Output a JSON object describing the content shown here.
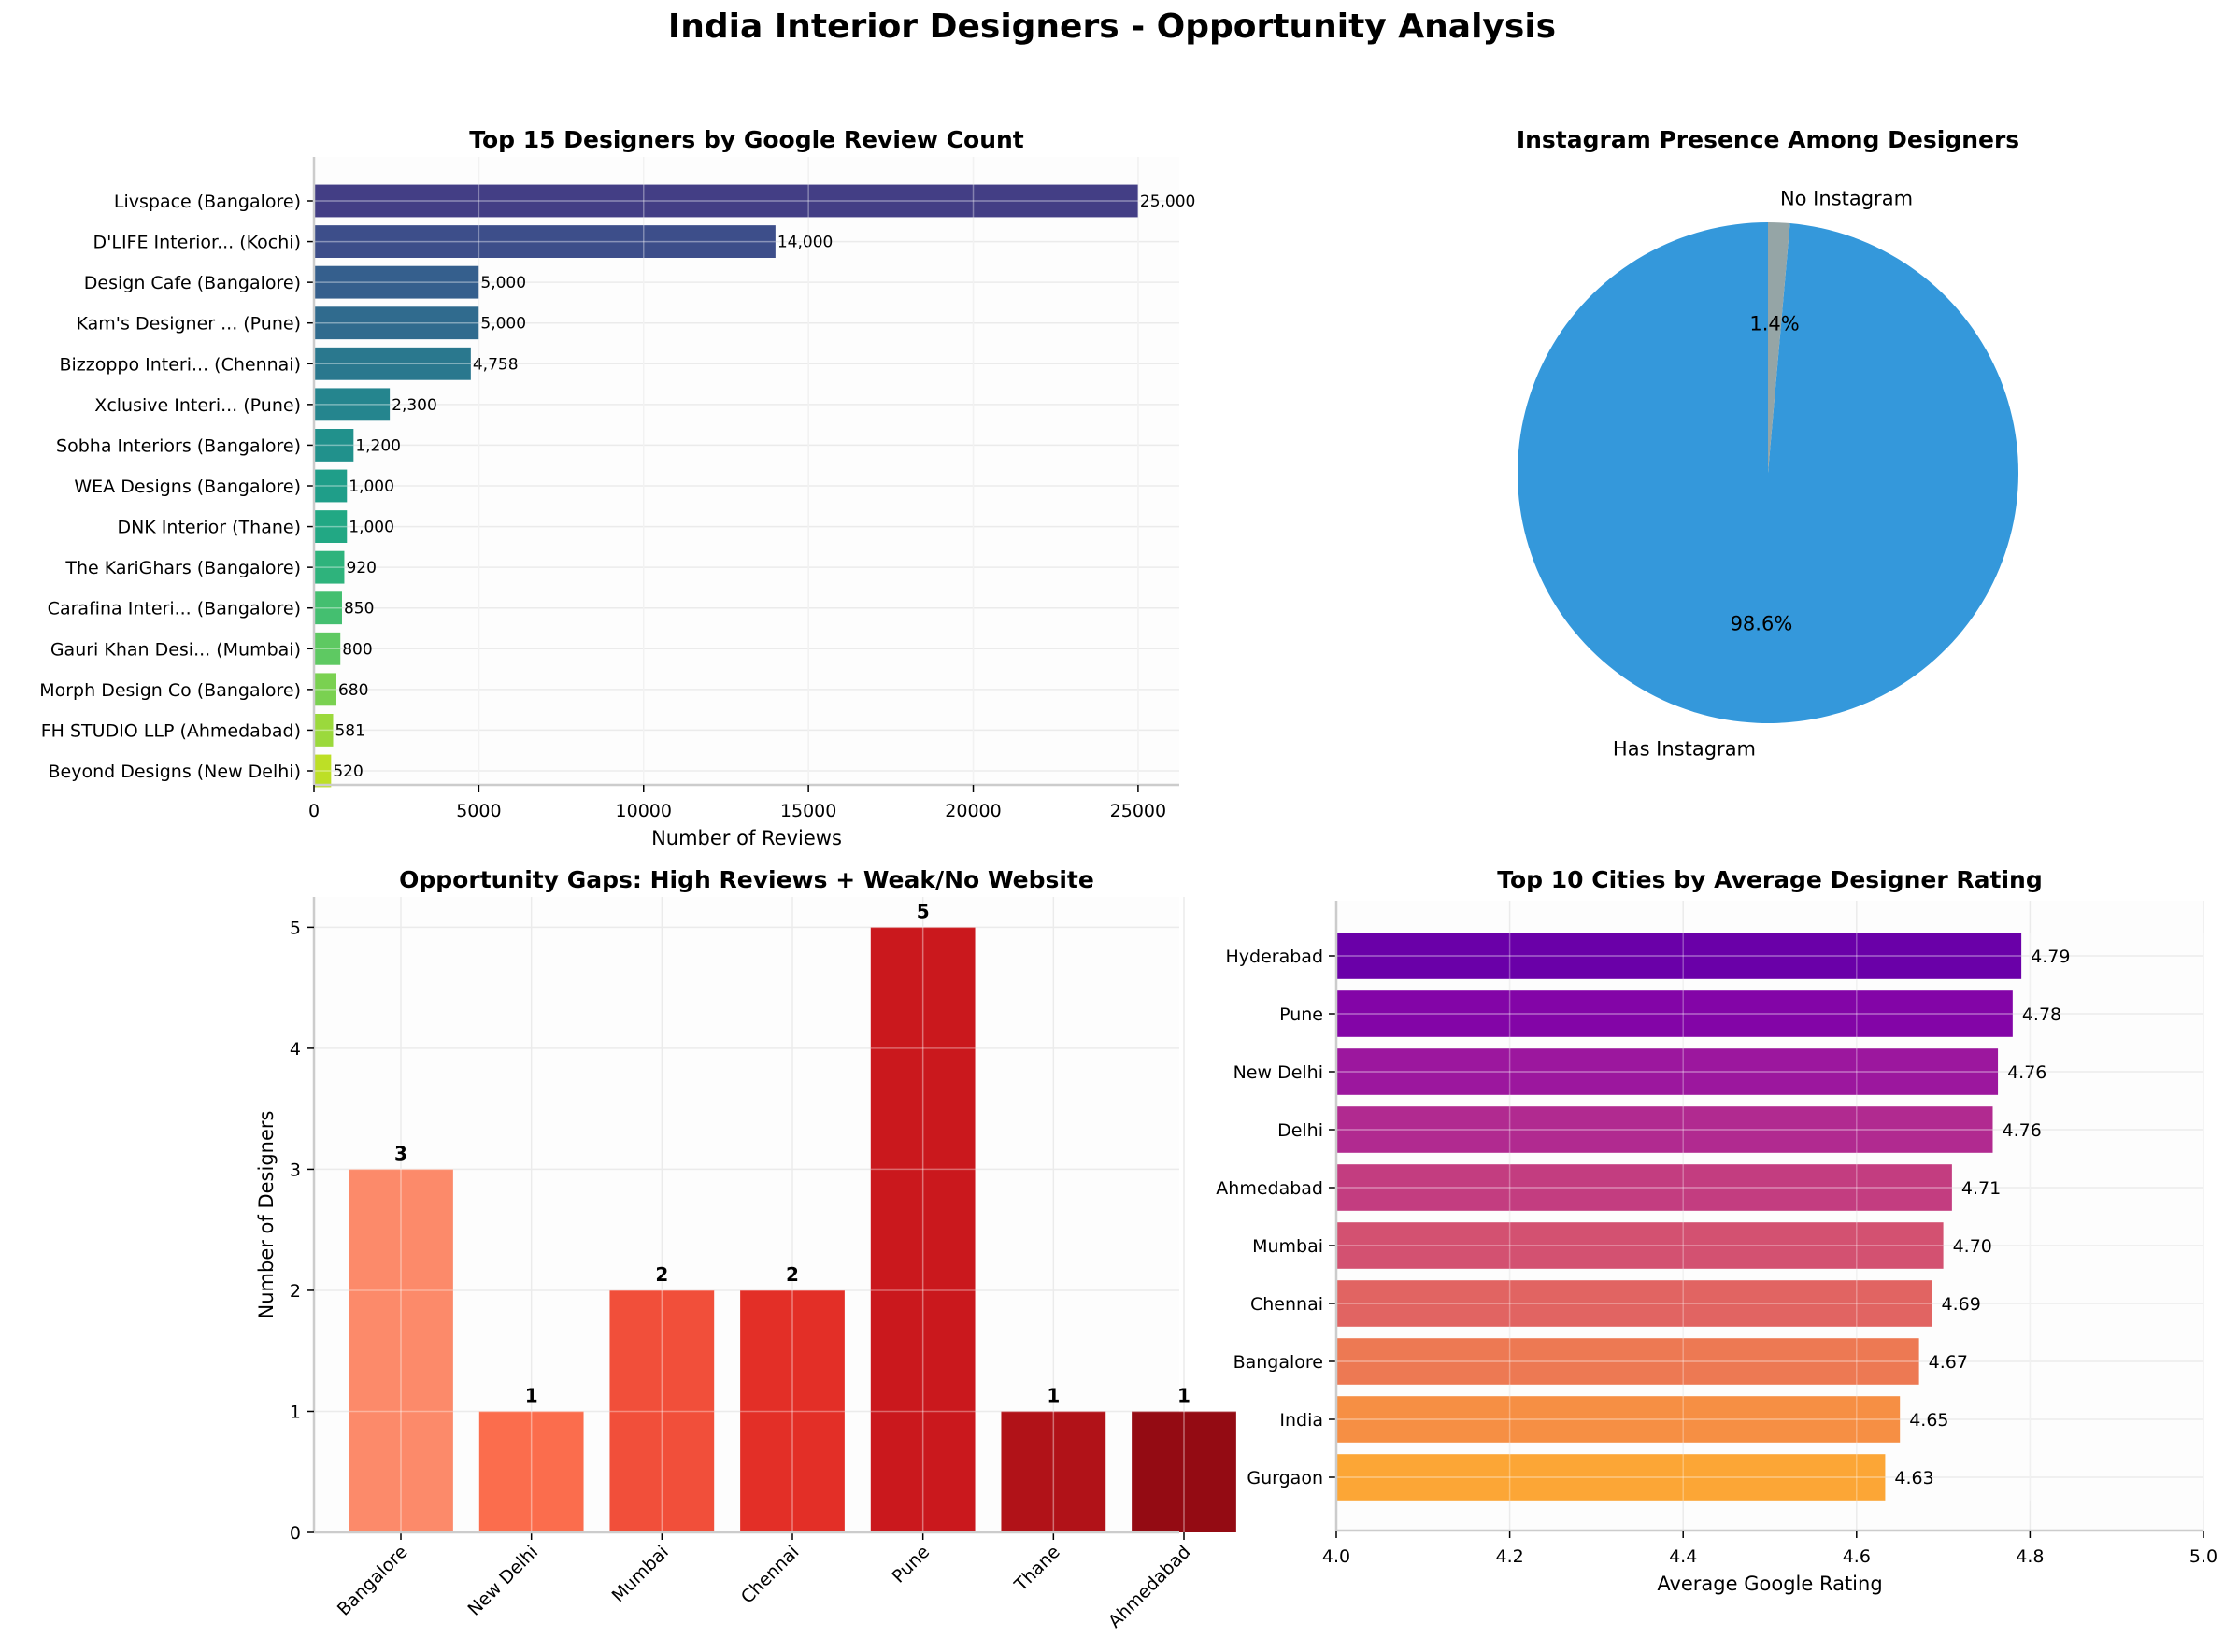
{
  "figure": {
    "title": "India Interior Designers - Opportunity Analysis"
  },
  "chart_data": [
    {
      "id": "reviews",
      "type": "bar",
      "orientation": "horizontal",
      "title": "Top 15 Designers by Google Review Count",
      "xlabel": "Number of Reviews",
      "ylabel": "",
      "xlim": [
        0,
        26250
      ],
      "xticks": [
        0,
        5000,
        10000,
        15000,
        20000,
        25000
      ],
      "xtick_labels": [
        "0",
        "5000",
        "10000",
        "15000",
        "20000",
        "25000"
      ],
      "grid": true,
      "categories": [
        "Livspace (Bangalore)",
        "D'LIFE Interior... (Kochi)",
        "Design Cafe (Bangalore)",
        "Kam's Designer ... (Pune)",
        "Bizzoppo Interi... (Chennai)",
        "Xclusive Interi... (Pune)",
        "Sobha Interiors (Bangalore)",
        "WEA Designs (Bangalore)",
        "DNK Interior (Thane)",
        "The KariGhars (Bangalore)",
        "Carafina Interi... (Bangalore)",
        "Gauri Khan Desi... (Mumbai)",
        "Morph Design Co (Bangalore)",
        "FH STUDIO LLP (Ahmedabad)",
        "Beyond Designs (New Delhi)"
      ],
      "values": [
        25000,
        14000,
        5000,
        5000,
        4758,
        2300,
        1200,
        1000,
        1000,
        920,
        850,
        800,
        680,
        581,
        520
      ],
      "value_labels": [
        "25,000",
        "14,000",
        "5,000",
        "5,000",
        "4,758",
        "2,300",
        "1,200",
        "1,000",
        "1,000",
        "920",
        "850",
        "800",
        "680",
        "581",
        "520"
      ],
      "colors": [
        "#433e85",
        "#3d4e8a",
        "#355f8d",
        "#306b8e",
        "#2a788e",
        "#25858e",
        "#21918c",
        "#1f9e89",
        "#22a884",
        "#2eb37c",
        "#44bf70",
        "#5ec962",
        "#7ad151",
        "#9bd93c",
        "#bddf26"
      ]
    },
    {
      "id": "instagram",
      "type": "pie",
      "title": "Instagram Presence Among Designers",
      "labels": [
        "Has Instagram",
        "No Instagram"
      ],
      "values": [
        98.6,
        1.4
      ],
      "pct_labels": [
        "98.6%",
        "1.4%"
      ],
      "colors": [
        "#3498db",
        "#95a5a6"
      ]
    },
    {
      "id": "gaps",
      "type": "bar",
      "orientation": "vertical",
      "title": "Opportunity Gaps: High Reviews + Weak/No Website",
      "xlabel": "",
      "ylabel": "Number of Designers",
      "ylim": [
        0,
        5.25
      ],
      "yticks": [
        0,
        1,
        2,
        3,
        4,
        5
      ],
      "ytick_labels": [
        "0",
        "1",
        "2",
        "3",
        "4",
        "5"
      ],
      "grid": true,
      "categories": [
        "Bangalore",
        "New Delhi",
        "Mumbai",
        "Chennai",
        "Pune",
        "Thane",
        "Ahmedabad"
      ],
      "values": [
        3,
        1,
        2,
        2,
        5,
        1,
        1
      ],
      "value_labels": [
        "3",
        "1",
        "2",
        "2",
        "5",
        "1",
        "1"
      ],
      "colors": [
        "#fc8a6a",
        "#fb6d4d",
        "#f14f3a",
        "#e32f27",
        "#ca181d",
        "#b11218",
        "#940b13"
      ]
    },
    {
      "id": "ratings",
      "type": "bar",
      "orientation": "horizontal",
      "title": "Top 10 Cities by Average Designer Rating",
      "xlabel": "Average Google Rating",
      "ylabel": "",
      "xlim": [
        4.0,
        5.0
      ],
      "xticks": [
        4.0,
        4.2,
        4.4,
        4.6,
        4.8,
        5.0
      ],
      "xtick_labels": [
        "4.0",
        "4.2",
        "4.4",
        "4.6",
        "4.8",
        "5.0"
      ],
      "grid": true,
      "categories": [
        "Hyderabad",
        "Pune",
        "New Delhi",
        "Delhi",
        "Ahmedabad",
        "Mumbai",
        "Chennai",
        "Bangalore",
        "India",
        "Gurgaon"
      ],
      "values": [
        4.79,
        4.78,
        4.763,
        4.757,
        4.71,
        4.7,
        4.687,
        4.672,
        4.65,
        4.633
      ],
      "value_labels": [
        "4.79",
        "4.78",
        "4.76",
        "4.76",
        "4.71",
        "4.70",
        "4.69",
        "4.67",
        "4.65",
        "4.63"
      ],
      "colors": [
        "#6a00a8",
        "#8305a7",
        "#9c179e",
        "#b12a90",
        "#c33d80",
        "#d35171",
        "#e16462",
        "#ed7953",
        "#f68f44",
        "#fca636"
      ]
    }
  ]
}
